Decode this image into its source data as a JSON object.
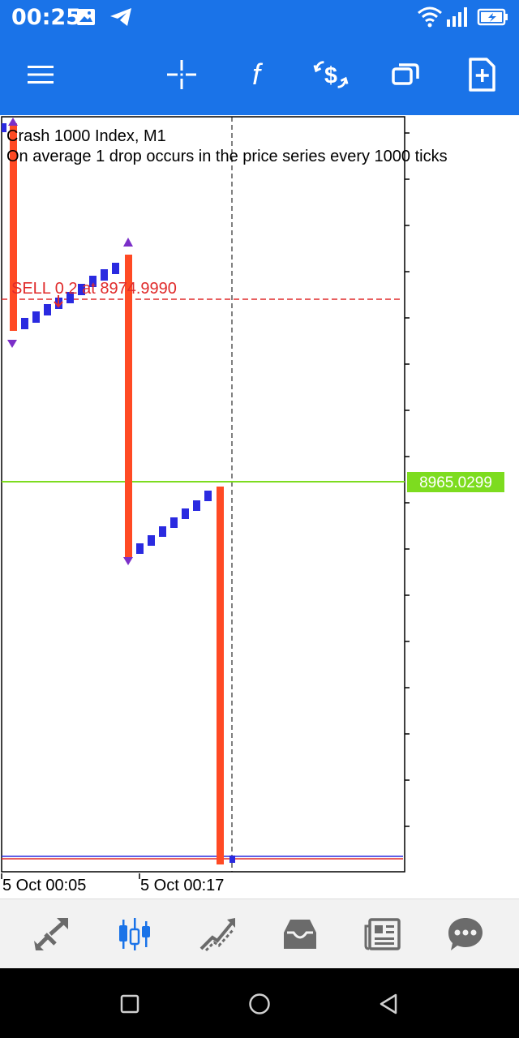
{
  "status_bar": {
    "time": "00:25",
    "icons": [
      "image-icon",
      "telegram-icon",
      "wifi-icon",
      "signal-icon",
      "battery-charging-icon"
    ]
  },
  "toolbar": {
    "icons": [
      "menu-icon",
      "crosshair-icon",
      "function-icon",
      "trade-icon",
      "windows-icon",
      "new-document-icon"
    ]
  },
  "chart": {
    "title": "Crash 1000 Index, M1",
    "description": "On average 1 drop occurs in the price series every 1000 ticks",
    "order_label": "SELL 0.2 at 8974.9990",
    "current_price": "8965.0299",
    "time_labels": [
      "5 Oct 00:05",
      "5 Oct 00:17"
    ],
    "colors": {
      "bull": "#2a2ae0",
      "bear": "#ff4a24",
      "marker": "#7b2fc8",
      "order_line": "#e02b2b",
      "price_line": "#7ddc1f"
    }
  },
  "chart_data": {
    "type": "candlestick",
    "symbol": "Crash 1000 Index",
    "timeframe": "M1",
    "bid": 8965.0299,
    "sell_order_price": 8974.999,
    "x_labels": [
      "5 Oct 00:05",
      "5 Oct 00:17"
    ]
  },
  "bottom_nav": {
    "items": [
      "quotes-icon",
      "chart-icon",
      "trade-icon",
      "history-icon",
      "news-icon",
      "chat-icon"
    ],
    "active": "chart-icon"
  },
  "system_nav": {
    "items": [
      "recents-button",
      "home-button",
      "back-button"
    ]
  }
}
